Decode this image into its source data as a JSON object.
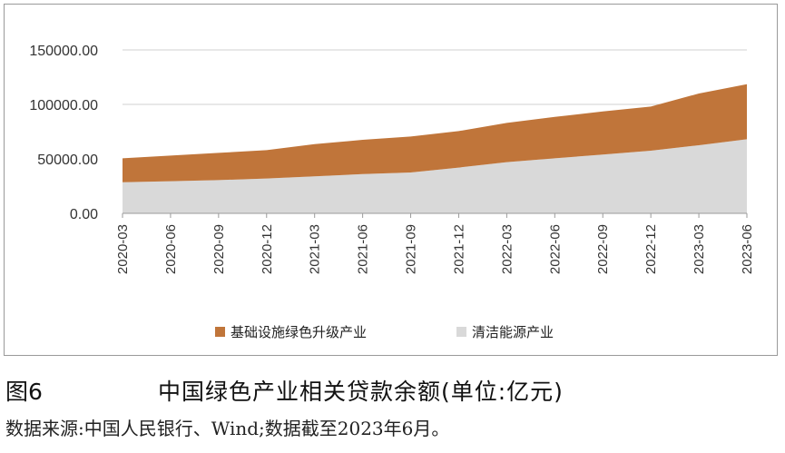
{
  "figure": {
    "number": "图6",
    "title": "中国绿色产业相关贷款余额(单位:亿元)",
    "source": "数据来源:中国人民银行、Wind;数据截至2023年6月。"
  },
  "colors": {
    "series_top": "#C0753A",
    "series_bottom": "#D9D9D9",
    "grid": "#D0D0D0",
    "axis": "#9A9A9A"
  },
  "chart_data": {
    "type": "area",
    "stacked": true,
    "title": "",
    "xlabel": "",
    "ylabel": "",
    "ylim": [
      0,
      150000
    ],
    "y_ticks": [
      "0.00",
      "50000.00",
      "100000.00",
      "150000.00"
    ],
    "y_tick_values": [
      0,
      50000,
      100000,
      150000
    ],
    "grid": true,
    "legend_position": "bottom",
    "categories": [
      "2020-03",
      "2020-06",
      "2020-09",
      "2020-12",
      "2021-03",
      "2021-06",
      "2021-09",
      "2021-12",
      "2022-03",
      "2022-06",
      "2022-09",
      "2022-12",
      "2023-03",
      "2023-06"
    ],
    "x_ticks": [
      "2020-03",
      "2020-06",
      "2020-09",
      "2020-12",
      "2021-03",
      "2021-06",
      "2021-09",
      "2021-12",
      "2022-03",
      "2022-06",
      "2022-09",
      "2022-12",
      "2023-03",
      "2023-06"
    ],
    "series": [
      {
        "name": "清洁能源产业",
        "color": "#D9D9D9",
        "values": [
          28500,
          29500,
          30500,
          32000,
          34000,
          36000,
          37500,
          42000,
          47000,
          50500,
          54000,
          57500,
          62500,
          68000
        ]
      },
      {
        "name": "基础设施绿色升级产业",
        "color": "#C0753A",
        "values": [
          22000,
          23500,
          25000,
          26000,
          29500,
          31500,
          33000,
          33500,
          36000,
          38000,
          39500,
          40500,
          47500,
          50500
        ]
      }
    ],
    "legend": [
      {
        "label": "基础设施绿色升级产业",
        "color": "#C0753A"
      },
      {
        "label": "清洁能源产业",
        "color": "#D9D9D9"
      }
    ]
  }
}
